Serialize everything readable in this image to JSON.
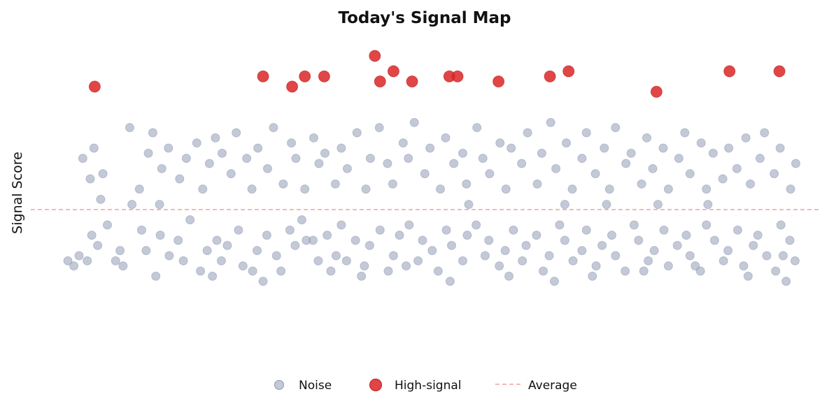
{
  "chart_data": {
    "type": "scatter",
    "title": "Today's Signal Map",
    "xlabel": "",
    "ylabel": "Signal Score",
    "grid": false,
    "legend_placement": "bottom-center",
    "xlim": [
      0,
      100
    ],
    "ylim": [
      -3.0,
      3.0
    ],
    "average_value": 0.0,
    "colors": {
      "noise": "#a3acc2",
      "high_signal": "#dc2626",
      "average": "#ef8f8f"
    },
    "legend": {
      "noise": "Noise",
      "high_signal": "High-signal",
      "average": "Average"
    },
    "series": [
      {
        "name": "Noise",
        "points": [
          [
            2.4,
            -1.1
          ],
          [
            3.1,
            -0.9
          ],
          [
            4.2,
            -1.0
          ],
          [
            5.6,
            -0.7
          ],
          [
            6.0,
            0.2
          ],
          [
            6.9,
            -0.3
          ],
          [
            8.0,
            -1.0
          ],
          [
            8.6,
            -0.8
          ],
          [
            10.2,
            0.1
          ],
          [
            11.5,
            -0.4
          ],
          [
            12.1,
            -0.8
          ],
          [
            13.4,
            -1.3
          ],
          [
            14.0,
            -0.5
          ],
          [
            15.2,
            -0.9
          ],
          [
            16.4,
            -0.6
          ],
          [
            17.1,
            -1.0
          ],
          [
            18.0,
            -0.2
          ],
          [
            19.4,
            -1.2
          ],
          [
            20.3,
            -0.8
          ],
          [
            21.6,
            -0.6
          ],
          [
            22.2,
            -1.0
          ],
          [
            23.0,
            -0.7
          ],
          [
            24.5,
            -0.4
          ],
          [
            25.1,
            -1.1
          ],
          [
            26.4,
            -1.2
          ],
          [
            27.0,
            -0.8
          ],
          [
            28.3,
            -0.5
          ],
          [
            29.6,
            -0.9
          ],
          [
            30.2,
            -1.2
          ],
          [
            31.4,
            -0.4
          ],
          [
            32.1,
            -0.7
          ],
          [
            33.0,
            -0.2
          ],
          [
            34.5,
            -0.6
          ],
          [
            35.2,
            -1.0
          ],
          [
            36.4,
            -0.5
          ],
          [
            37.6,
            -0.9
          ],
          [
            38.3,
            -0.3
          ],
          [
            39.0,
            -1.0
          ],
          [
            40.2,
            -0.6
          ],
          [
            41.4,
            -1.1
          ],
          [
            42.1,
            -0.7
          ],
          [
            43.5,
            -0.4
          ],
          [
            44.6,
            -1.2
          ],
          [
            45.3,
            -0.9
          ],
          [
            46.1,
            -0.5
          ],
          [
            47.4,
            -0.3
          ],
          [
            48.6,
            -1.0
          ],
          [
            49.2,
            -0.6
          ],
          [
            50.5,
            -0.8
          ],
          [
            51.3,
            -1.2
          ],
          [
            52.4,
            -0.4
          ],
          [
            53.1,
            -0.7
          ],
          [
            54.6,
            -1.0
          ],
          [
            55.2,
            -0.5
          ],
          [
            56.4,
            -0.3
          ],
          [
            57.6,
            -0.9
          ],
          [
            58.1,
            -0.6
          ],
          [
            59.5,
            -1.1
          ],
          [
            60.3,
            -0.8
          ],
          [
            61.4,
            -0.4
          ],
          [
            62.6,
            -1.0
          ],
          [
            63.1,
            -0.7
          ],
          [
            64.5,
            -0.5
          ],
          [
            65.4,
            -1.2
          ],
          [
            66.2,
            -0.9
          ],
          [
            67.6,
            -0.3
          ],
          [
            68.3,
            -0.6
          ],
          [
            69.4,
            -1.0
          ],
          [
            70.6,
            -0.8
          ],
          [
            71.2,
            -0.4
          ],
          [
            72.5,
            -1.1
          ],
          [
            73.3,
            -0.7
          ],
          [
            74.6,
            -0.5
          ],
          [
            75.1,
            -0.9
          ],
          [
            76.4,
            -1.2
          ],
          [
            77.6,
            -0.3
          ],
          [
            78.2,
            -0.6
          ],
          [
            79.5,
            -1.0
          ],
          [
            80.3,
            -0.8
          ],
          [
            81.6,
            -0.4
          ],
          [
            82.2,
            -1.1
          ],
          [
            83.4,
            -0.7
          ],
          [
            84.6,
            -0.5
          ],
          [
            85.1,
            -0.9
          ],
          [
            86.5,
            -1.2
          ],
          [
            87.3,
            -0.3
          ],
          [
            88.4,
            -0.6
          ],
          [
            89.6,
            -1.0
          ],
          [
            90.2,
            -0.8
          ],
          [
            91.5,
            -0.4
          ],
          [
            92.3,
            -1.1
          ],
          [
            93.6,
            -0.7
          ],
          [
            94.2,
            -0.5
          ],
          [
            95.4,
            -0.9
          ],
          [
            96.6,
            -1.2
          ],
          [
            97.3,
            -0.3
          ],
          [
            98.5,
            -0.6
          ],
          [
            99.2,
            -1.0
          ],
          [
            4.8,
            -0.5
          ],
          [
            36.9,
            -1.2
          ],
          [
            9.0,
            -1.1
          ],
          [
            21.0,
            -1.3
          ],
          [
            27.8,
            -1.4
          ],
          [
            33.6,
            -0.6
          ],
          [
            41.0,
            -1.3
          ],
          [
            47.0,
            -1.1
          ],
          [
            52.9,
            -1.4
          ],
          [
            60.8,
            -1.3
          ],
          [
            66.9,
            -1.4
          ],
          [
            72.0,
            -1.3
          ],
          [
            78.9,
            -1.2
          ],
          [
            85.8,
            -1.1
          ],
          [
            92.9,
            -1.3
          ],
          [
            98.0,
            -1.4
          ],
          [
            1.6,
            -1.0
          ],
          [
            97.6,
            -0.9
          ],
          [
            3.6,
            1.0
          ],
          [
            4.6,
            0.6
          ],
          [
            5.1,
            1.2
          ],
          [
            6.3,
            0.7
          ],
          [
            9.9,
            1.6
          ],
          [
            11.2,
            0.4
          ],
          [
            12.4,
            1.1
          ],
          [
            13.0,
            1.5
          ],
          [
            14.2,
            0.8
          ],
          [
            15.1,
            1.2
          ],
          [
            16.6,
            0.6
          ],
          [
            17.5,
            1.0
          ],
          [
            18.9,
            1.3
          ],
          [
            19.7,
            0.4
          ],
          [
            20.6,
            0.9
          ],
          [
            21.4,
            1.4
          ],
          [
            22.3,
            1.1
          ],
          [
            23.5,
            0.7
          ],
          [
            24.2,
            1.5
          ],
          [
            25.6,
            1.0
          ],
          [
            26.3,
            0.4
          ],
          [
            27.1,
            1.2
          ],
          [
            28.4,
            0.8
          ],
          [
            29.2,
            1.6
          ],
          [
            30.5,
            0.5
          ],
          [
            31.6,
            1.3
          ],
          [
            32.2,
            1.0
          ],
          [
            33.4,
            0.4
          ],
          [
            34.6,
            1.4
          ],
          [
            35.3,
            0.9
          ],
          [
            36.1,
            1.1
          ],
          [
            37.5,
            0.5
          ],
          [
            38.3,
            1.2
          ],
          [
            39.1,
            0.8
          ],
          [
            40.4,
            1.5
          ],
          [
            41.6,
            0.4
          ],
          [
            42.2,
            1.0
          ],
          [
            43.4,
            1.6
          ],
          [
            44.5,
            0.9
          ],
          [
            45.2,
            0.5
          ],
          [
            46.6,
            1.3
          ],
          [
            47.3,
            1.0
          ],
          [
            48.1,
            1.7
          ],
          [
            49.5,
            0.7
          ],
          [
            50.2,
            1.2
          ],
          [
            51.6,
            0.4
          ],
          [
            52.3,
            1.4
          ],
          [
            53.4,
            0.9
          ],
          [
            54.6,
            1.1
          ],
          [
            55.1,
            0.5
          ],
          [
            56.5,
            1.6
          ],
          [
            57.3,
            1.0
          ],
          [
            58.2,
            0.7
          ],
          [
            59.6,
            1.3
          ],
          [
            60.4,
            0.4
          ],
          [
            61.1,
            1.2
          ],
          [
            62.5,
            0.9
          ],
          [
            63.3,
            1.5
          ],
          [
            64.6,
            0.5
          ],
          [
            65.2,
            1.1
          ],
          [
            66.4,
            1.7
          ],
          [
            67.1,
            0.8
          ],
          [
            68.5,
            1.3
          ],
          [
            69.3,
            0.4
          ],
          [
            70.6,
            1.0
          ],
          [
            71.2,
            1.5
          ],
          [
            72.4,
            0.7
          ],
          [
            73.6,
            1.2
          ],
          [
            74.3,
            0.4
          ],
          [
            75.1,
            1.6
          ],
          [
            76.5,
            0.9
          ],
          [
            77.2,
            1.1
          ],
          [
            78.6,
            0.5
          ],
          [
            79.3,
            1.4
          ],
          [
            80.1,
            0.8
          ],
          [
            81.5,
            1.2
          ],
          [
            82.2,
            0.4
          ],
          [
            83.6,
            1.0
          ],
          [
            84.4,
            1.5
          ],
          [
            85.1,
            0.7
          ],
          [
            86.6,
            1.3
          ],
          [
            87.3,
            0.4
          ],
          [
            88.2,
            1.1
          ],
          [
            89.5,
            0.6
          ],
          [
            90.3,
            1.2
          ],
          [
            91.4,
            0.8
          ],
          [
            92.6,
            1.4
          ],
          [
            93.2,
            0.5
          ],
          [
            94.5,
            1.0
          ],
          [
            95.1,
            1.5
          ],
          [
            96.4,
            0.7
          ],
          [
            97.2,
            1.2
          ],
          [
            98.6,
            0.4
          ],
          [
            99.3,
            0.9
          ],
          [
            13.9,
            0.1
          ],
          [
            55.4,
            0.1
          ],
          [
            68.3,
            0.1
          ],
          [
            73.9,
            0.1
          ],
          [
            80.8,
            0.1
          ],
          [
            87.5,
            0.1
          ]
        ]
      },
      {
        "name": "High-signal",
        "points": [
          [
            5.2,
            2.4
          ],
          [
            27.8,
            2.6
          ],
          [
            31.7,
            2.4
          ],
          [
            33.4,
            2.6
          ],
          [
            36.0,
            2.6
          ],
          [
            42.8,
            3.0
          ],
          [
            43.5,
            2.5
          ],
          [
            45.3,
            2.7
          ],
          [
            47.8,
            2.5
          ],
          [
            52.8,
            2.6
          ],
          [
            53.9,
            2.6
          ],
          [
            59.4,
            2.5
          ],
          [
            66.3,
            2.6
          ],
          [
            68.8,
            2.7
          ],
          [
            80.6,
            2.3
          ],
          [
            90.4,
            2.7
          ],
          [
            97.1,
            2.7
          ]
        ]
      }
    ]
  }
}
